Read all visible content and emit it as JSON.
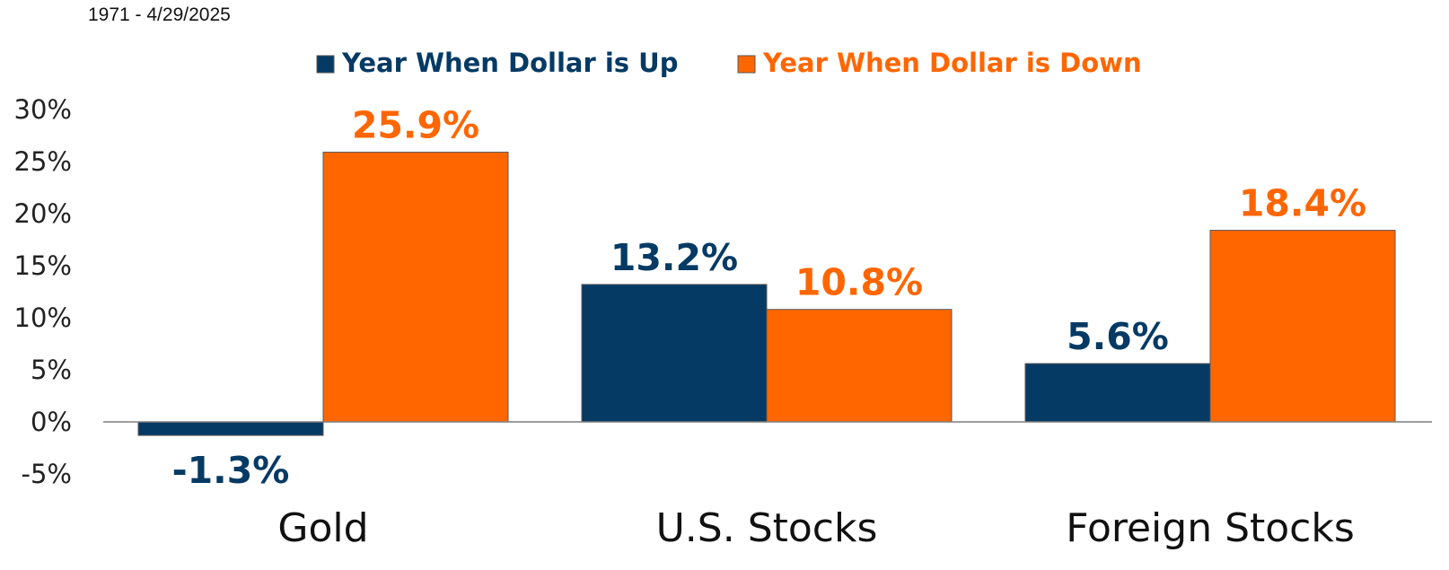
{
  "subtitle": "1971 - 4/29/2025",
  "colors": {
    "dollar_up": "#053a64",
    "dollar_down": "#ff6600",
    "axis": "#7f7f7f",
    "bar_stroke": "#595959"
  },
  "chart_data": {
    "type": "bar",
    "title": "",
    "xlabel": "",
    "ylabel": "",
    "categories": [
      "Gold",
      "U.S. Stocks",
      "Foreign Stocks"
    ],
    "series": [
      {
        "name": "Year When Dollar is Up",
        "values": [
          -1.3,
          13.2,
          5.6
        ],
        "labels": [
          "-1.3%",
          "13.2%",
          "5.6%"
        ]
      },
      {
        "name": "Year When Dollar is Down",
        "values": [
          25.9,
          10.8,
          18.4
        ],
        "labels": [
          "25.9%",
          "10.8%",
          "18.4%"
        ]
      }
    ],
    "ylim": [
      -5,
      30
    ],
    "yticks": [
      30,
      25,
      20,
      15,
      10,
      5,
      0,
      -5
    ],
    "ytick_labels": [
      "30%",
      "25%",
      "20%",
      "15%",
      "10%",
      "5%",
      "0%",
      "-5%"
    ],
    "grid": false,
    "legend_position": "top-center"
  }
}
